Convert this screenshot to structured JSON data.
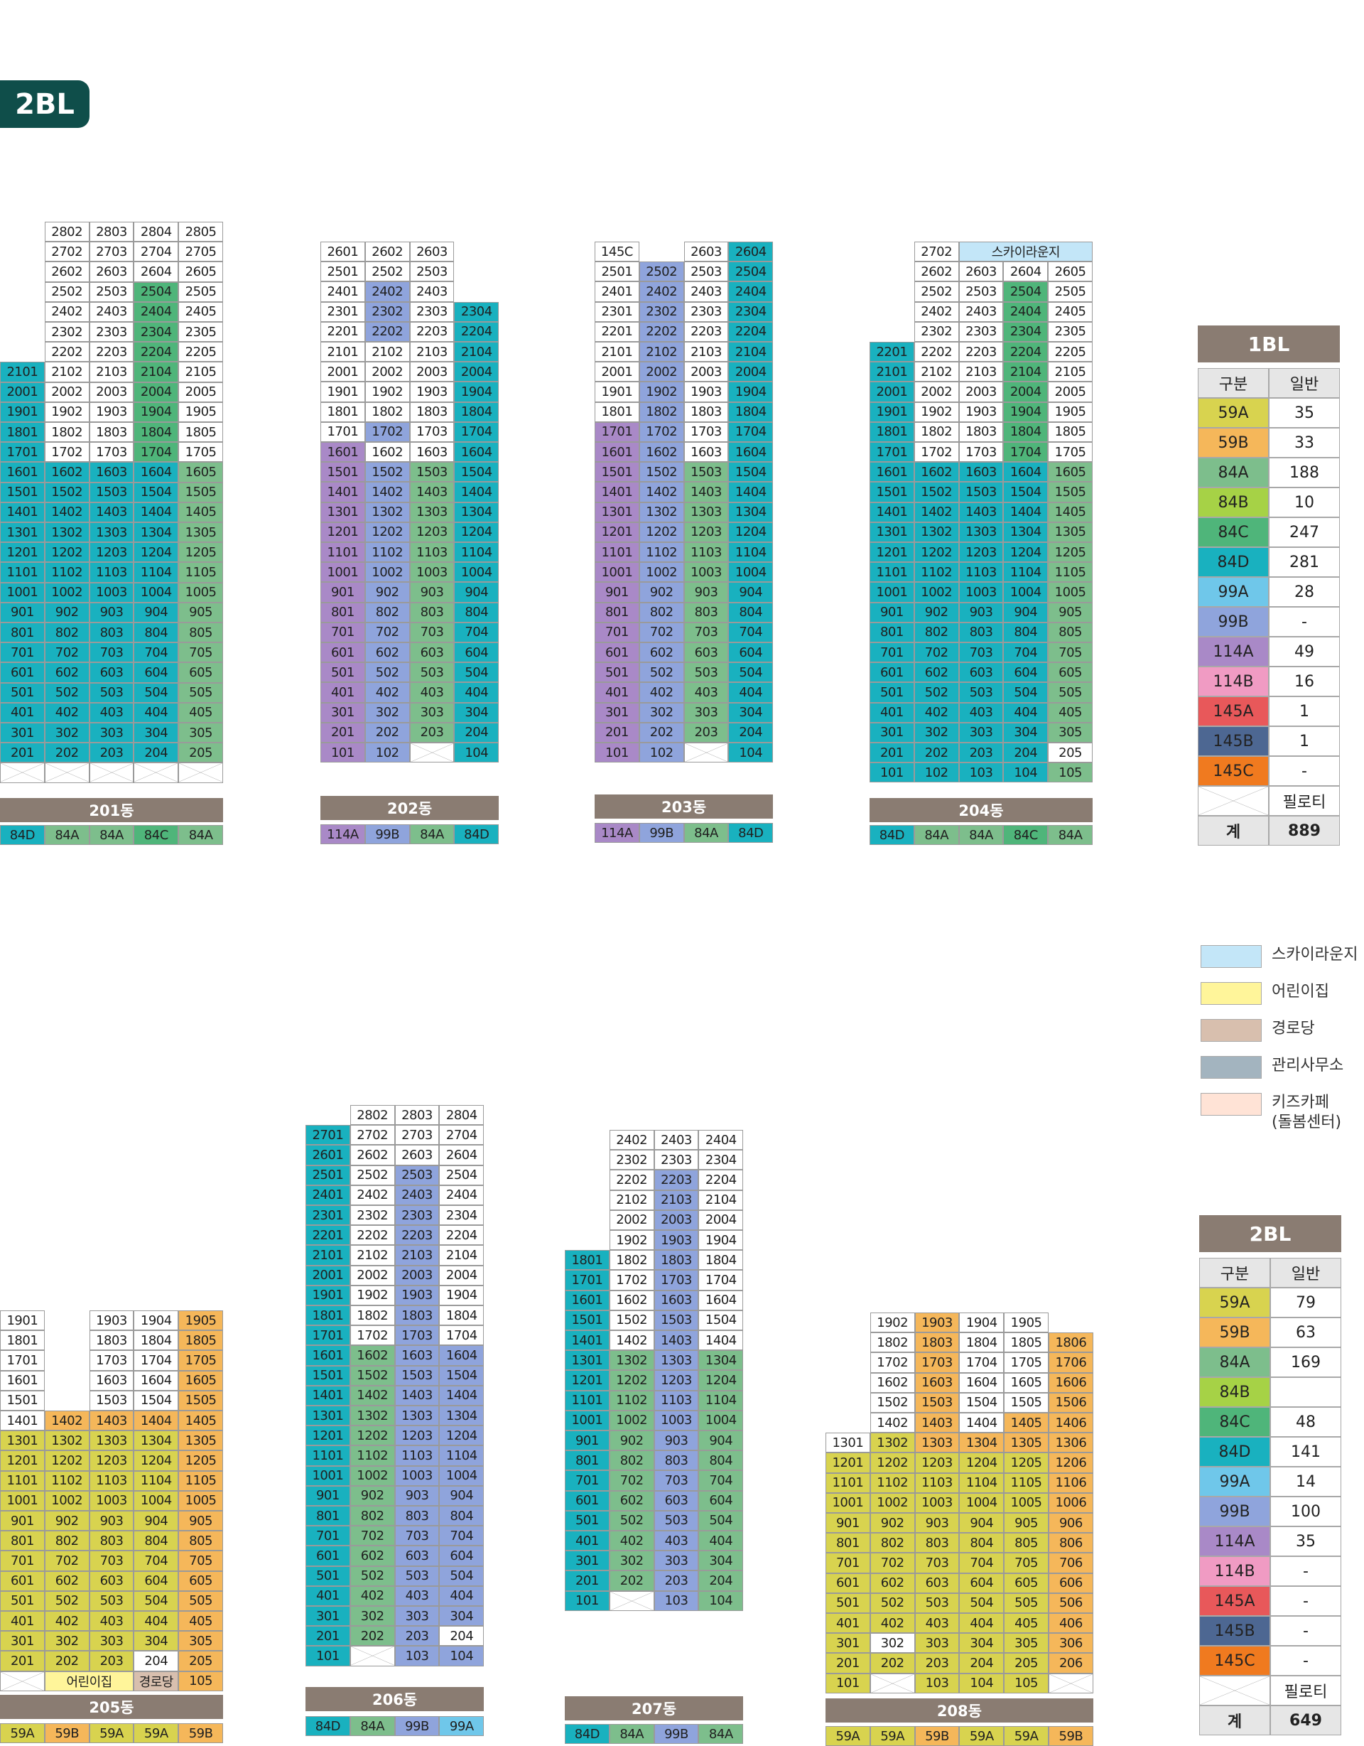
{
  "badge": "2BL",
  "colors": {
    "59A": "#d8d34f",
    "59B": "#f5b75a",
    "84A": "#7dbe8c",
    "84B": "#a6d246",
    "84C": "#4fb57a",
    "84D": "#19b1bf",
    "99A": "#6fc7ea",
    "99B": "#8fa4dc",
    "114A": "#a989c7",
    "114B": "#f09bc3",
    "145A": "#e8585a",
    "145B": "#4d6792",
    "145C": "#f07a1f",
    "W": "#ffffff",
    "SKY": "#c3e6f8",
    "DAY": "#fff59a",
    "SEN": "#d8bfae",
    "MGT": "#a3b4bf",
    "KID": "#ffe3d6"
  },
  "buildings": [
    {
      "name": "201동",
      "bottom": [
        "84D",
        "84A",
        "84A",
        "84C",
        "84A"
      ],
      "mask": [
        "_5555",
        "_5555",
        "_5555",
        "_5555",
        "_5555",
        "_5555",
        "_5555",
        "55555",
        "55555",
        "55555",
        "55555",
        "55555",
        "55555",
        "55555",
        "55555",
        "55555",
        "55555",
        "55555",
        "55555",
        "55555",
        "55555",
        "55555",
        "55555",
        "55555",
        "55555",
        "55555",
        "55555",
        "XXXXX"
      ],
      "colors": [
        "_WWWW",
        "_WWWW",
        "_WWWW",
        "_WW3W",
        "_WW3W",
        "_WW3W",
        "_WW3W",
        "5WW3W",
        "5WW3W",
        "5WW3W",
        "5WW3W",
        "5WW3W",
        "55552",
        "55552",
        "55552",
        "55552",
        "55552",
        "55552",
        "55552",
        "55552",
        "55552",
        "55552",
        "55552",
        "55552",
        "55552",
        "55552",
        "55552",
        "XXXXX"
      ]
    },
    {
      "name": "202동",
      "bottom": [
        "114A",
        "99B",
        "84A",
        "84D"
      ],
      "mask": [
        "333_",
        "333_",
        "333_",
        "3334",
        "3334",
        "3334",
        "3334",
        "3334",
        "3334",
        "3334",
        "3334",
        "3334",
        "3334",
        "3334",
        "3334",
        "3334",
        "3334",
        "3334",
        "3334",
        "3334",
        "3334",
        "3334",
        "3334",
        "3334",
        "3334",
        "22X4"
      ],
      "colors": [
        "WWW_",
        "WWW_",
        "W7W_",
        "W7W5",
        "W7W5",
        "WWW5",
        "WWW5",
        "WWW5",
        "WWW5",
        "W7W5",
        "8WW5",
        "8725",
        "8725",
        "8725",
        "8725",
        "8725",
        "8725",
        "8725",
        "8725",
        "8725",
        "8725",
        "8725",
        "8725",
        "8725",
        "8725",
        "87X5"
      ]
    },
    {
      "name": "203동",
      "bottom": [
        "114A",
        "99B",
        "84A",
        "84D"
      ],
      "mask": [
        "1_34",
        "3334",
        "3334",
        "3334",
        "3334",
        "3334",
        "3334",
        "3334",
        "3334",
        "3334",
        "3334",
        "3334",
        "3334",
        "3334",
        "3334",
        "3334",
        "3334",
        "3334",
        "3334",
        "3334",
        "3334",
        "3334",
        "3334",
        "3334",
        "3334",
        "22X4"
      ],
      "colors": [
        "W_W5",
        "W7W5",
        "W7W5",
        "W7W5",
        "W7W5",
        "W7W5",
        "W7W5",
        "W7W5",
        "W7W5",
        "87W5",
        "87W5",
        "8725",
        "8725",
        "8725",
        "8725",
        "8725",
        "8725",
        "8725",
        "8725",
        "8725",
        "8725",
        "8725",
        "8725",
        "8725",
        "8725",
        "87X5"
      ]
    },
    {
      "name": "204동",
      "bottom": [
        "84D",
        "84A",
        "84A",
        "84C",
        "84A"
      ],
      "mask": [
        "_1kkk",
        "_5555",
        "_5555",
        "_5555",
        "_5555",
        "55555",
        "55555",
        "55555",
        "55555",
        "55555",
        "55555",
        "55555",
        "55555",
        "55555",
        "55555",
        "55555",
        "55555",
        "55555",
        "55555",
        "55555",
        "55555",
        "55555",
        "55555",
        "55555",
        "55555",
        "55555",
        "55555"
      ],
      "colors": [
        "_WSSS",
        "_WWWW",
        "_WW3W",
        "_WW3W",
        "_WW3W",
        "5WW3W",
        "5WW3W",
        "5WW3W",
        "5WW3W",
        "5WW3W",
        "5WW3W",
        "55552",
        "55552",
        "55552",
        "55552",
        "55552",
        "55552",
        "55552",
        "55552",
        "55552",
        "55552",
        "55552",
        "55552",
        "55552",
        "55552",
        "5555W",
        "55552"
      ]
    },
    {
      "name": "205동",
      "bottom": [
        "59A",
        "59B",
        "59A",
        "59A",
        "59B"
      ],
      "mask": [
        "1_333",
        "1_333",
        "1_333",
        "1_333",
        "1_333",
        "22333",
        "22333",
        "22333",
        "22333",
        "22333",
        "22333",
        "22333",
        "22333",
        "22333",
        "22333",
        "22333",
        "22333",
        "22333",
        "XddeA"
      ],
      "colors": [
        "W_WWB",
        "W_WWB",
        "W_WWB",
        "W_WWB",
        "W_WWB",
        "WBBBB",
        "AAAAB",
        "AAAAB",
        "AAAAB",
        "AAAAB",
        "AAAAB",
        "AAAAB",
        "AAAAB",
        "AAAAB",
        "AAAAB",
        "AAAAB",
        "AAAAB",
        "AAAWB",
        "XYYTB"
      ]
    },
    {
      "name": "206동",
      "bottom": [
        "84D",
        "84A",
        "99B",
        "99A"
      ],
      "mask": [
        "_333",
        "4444",
        "4444",
        "4444",
        "4444",
        "4444",
        "4444",
        "4444",
        "4444",
        "4444",
        "4444",
        "4444",
        "4444",
        "4444",
        "4444",
        "4444",
        "4444",
        "4444",
        "4444",
        "4444",
        "4444",
        "4444",
        "4444",
        "4444",
        "4444",
        "4444",
        "4444",
        "2X44"
      ],
      "colors": [
        "_WWW",
        "5WWW",
        "5WWW",
        "5W7W",
        "5W7W",
        "5W7W",
        "5W7W",
        "5W7W",
        "5W7W",
        "5W7W",
        "5W7W",
        "5W7W",
        "5277",
        "5277",
        "5277",
        "5277",
        "5277",
        "5277",
        "5277",
        "5277",
        "5277",
        "5277",
        "5277",
        "5277",
        "5277",
        "5277",
        "527W",
        "5X77"
      ]
    },
    {
      "name": "207동",
      "bottom": [
        "84D",
        "84A",
        "99B",
        "84A"
      ],
      "mask": [
        "_333",
        "_333",
        "_333",
        "_333",
        "_333",
        "_333",
        "4444",
        "4444",
        "4444",
        "4444",
        "4444",
        "4444",
        "4444",
        "4444",
        "4444",
        "4444",
        "4444",
        "4444",
        "4444",
        "4444",
        "4444",
        "4444",
        "4444",
        "2X44"
      ],
      "colors": [
        "_WWW",
        "_WWW",
        "_W7W",
        "_W7W",
        "_W7W",
        "_W7W",
        "5W7W",
        "5W7W",
        "5W7W",
        "5W7W",
        "5W7W",
        "5272",
        "5272",
        "5272",
        "5272",
        "5272",
        "5272",
        "5272",
        "5272",
        "5272",
        "5272",
        "5272",
        "5272",
        "5X72"
      ]
    },
    {
      "name": "208동",
      "bottom": [
        "59A",
        "59A",
        "59B",
        "59A",
        "59A",
        "59B"
      ],
      "mask": [
        "_3333_",
        "_33333",
        "_33333",
        "_33333",
        "_33333",
        "_33333",
        "333333",
        "333333",
        "333333",
        "333333",
        "333333",
        "333333",
        "333333",
        "333333",
        "333333",
        "333333",
        "333333",
        "333333",
        "2X333X"
      ],
      "colors": [
        "_WBWW_",
        "_WBWWB",
        "_WBWWB",
        "_WBWWB",
        "_WBWWB",
        "_WBWBB",
        "WABBBB",
        "AAAAAB",
        "AAAAAB",
        "AAAAAB",
        "AAAAAB",
        "AAAAAB",
        "AAAAAB",
        "AAAAAB",
        "AAAAAB",
        "AAAAAB",
        "AWAAAB",
        "AAAAAB",
        "AXAAAX"
      ]
    }
  ],
  "labels": {
    "skylounge": "스카이라운지",
    "daycare": "어린이집",
    "senior": "경로당"
  },
  "tables": [
    {
      "title": "1BL",
      "h1": "구분",
      "h2": "일반",
      "rows": [
        [
          "59A",
          "35"
        ],
        [
          "59B",
          "33"
        ],
        [
          "84A",
          "188"
        ],
        [
          "84B",
          "10"
        ],
        [
          "84C",
          "247"
        ],
        [
          "84D",
          "281"
        ],
        [
          "99A",
          "28"
        ],
        [
          "99B",
          "-"
        ],
        [
          "114A",
          "49"
        ],
        [
          "114B",
          "16"
        ],
        [
          "145A",
          "1"
        ],
        [
          "145B",
          "1"
        ],
        [
          "145C",
          "-"
        ]
      ],
      "pilotis": "필로티",
      "total_label": "계",
      "total": "889"
    },
    {
      "title": "2BL",
      "h1": "구분",
      "h2": "일반",
      "rows": [
        [
          "59A",
          "79"
        ],
        [
          "59B",
          "63"
        ],
        [
          "84A",
          "169"
        ],
        [
          "84B",
          ""
        ],
        [
          "84C",
          "48"
        ],
        [
          "84D",
          "141"
        ],
        [
          "99A",
          "14"
        ],
        [
          "99B",
          "100"
        ],
        [
          "114A",
          "35"
        ],
        [
          "114B",
          "-"
        ],
        [
          "145A",
          "-"
        ],
        [
          "145B",
          "-"
        ],
        [
          "145C",
          "-"
        ]
      ],
      "pilotis": "필로티",
      "total_label": "계",
      "total": "649"
    }
  ],
  "legend": [
    {
      "key": "SKY",
      "label": "스카이라운지"
    },
    {
      "key": "DAY",
      "label": "어린이집"
    },
    {
      "key": "SEN",
      "label": "경로당"
    },
    {
      "key": "MGT",
      "label": "관리사무소"
    },
    {
      "key": "KID",
      "label": "키즈카페\n(돌봄센터)"
    }
  ]
}
